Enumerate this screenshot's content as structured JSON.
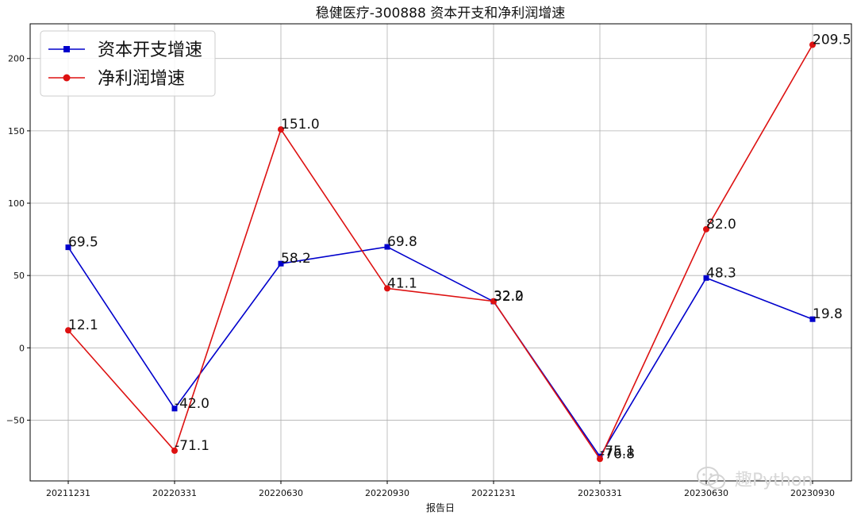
{
  "chart_data": {
    "type": "line",
    "title": "稳健医疗-300888 资本开支和净利润增速",
    "xlabel": "报告日",
    "ylabel": "",
    "categories": [
      "20211231",
      "20220331",
      "20220630",
      "20220930",
      "20221231",
      "20230331",
      "20230630",
      "20230930"
    ],
    "ylim": [
      -92,
      224
    ],
    "yticks": [
      -50,
      0,
      50,
      100,
      150,
      200
    ],
    "ytick_labels": [
      "−50",
      "0",
      "50",
      "100",
      "150",
      "200"
    ],
    "grid": true,
    "legend_position": "top-left",
    "series": [
      {
        "name": "资本开支增速",
        "color": "#0000cc",
        "marker": "square",
        "values": [
          69.5,
          -42.0,
          58.2,
          69.8,
          32.0,
          -75.1,
          48.3,
          19.8
        ],
        "labels": [
          "69.5",
          "-42.0",
          "58.2",
          "69.8",
          "32.0",
          "-75.1",
          "48.3",
          "19.8"
        ]
      },
      {
        "name": "净利润增速",
        "color": "#dd1111",
        "marker": "circle",
        "values": [
          12.1,
          -71.1,
          151.0,
          41.1,
          32.2,
          -76.8,
          82.0,
          209.5
        ],
        "labels": [
          "12.1",
          "-71.1",
          "151.0",
          "41.1",
          "32.2",
          "-76.8",
          "82.0",
          "209.5"
        ]
      }
    ]
  },
  "watermark": {
    "text": "趣Python",
    "icon": "wechat-icon"
  }
}
